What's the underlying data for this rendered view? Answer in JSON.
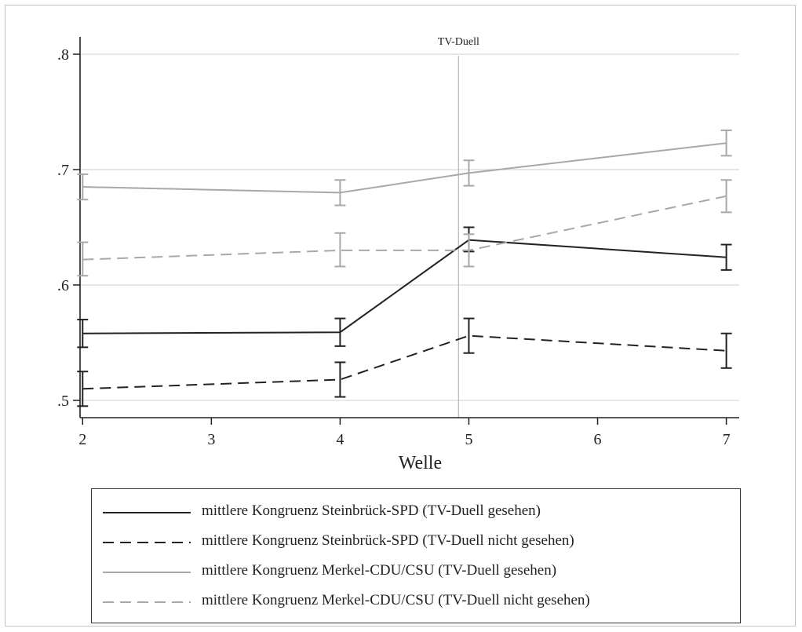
{
  "chart_data": {
    "type": "line",
    "title": "",
    "xlabel": "Welle",
    "ylabel": "",
    "x": [
      2,
      4,
      5,
      7
    ],
    "x_ticks": [
      "2",
      "3",
      "4",
      "5",
      "6",
      "7"
    ],
    "y_ticks": [
      ".5",
      ".6",
      ".7",
      ".8"
    ],
    "xlim": [
      1.98,
      7.1
    ],
    "ylim": [
      0.485,
      0.815
    ],
    "grid": true,
    "annotation": {
      "label": "TV-Duell",
      "x": 4.92
    },
    "legend_position": "bottom",
    "series": [
      {
        "name": "mittlere Kongruenz Steinbrück-SPD (TV-Duell gesehen)",
        "color": "#222222",
        "dash": "solid",
        "values": [
          0.558,
          0.559,
          0.639,
          0.624
        ],
        "lower": [
          0.546,
          0.547,
          0.629,
          0.613
        ],
        "upper": [
          0.57,
          0.571,
          0.65,
          0.635
        ]
      },
      {
        "name": "mittlere Kongruenz Steinbrück-SPD (TV-Duell nicht gesehen)",
        "color": "#222222",
        "dash": "dashed",
        "values": [
          0.51,
          0.518,
          0.556,
          0.543
        ],
        "lower": [
          0.495,
          0.503,
          0.541,
          0.528
        ],
        "upper": [
          0.525,
          0.533,
          0.571,
          0.558
        ]
      },
      {
        "name": "mittlere Kongruenz Merkel-CDU/CSU (TV-Duell gesehen)",
        "color": "#a8a8a8",
        "dash": "solid",
        "values": [
          0.685,
          0.68,
          0.697,
          0.723
        ],
        "lower": [
          0.674,
          0.669,
          0.686,
          0.712
        ],
        "upper": [
          0.696,
          0.691,
          0.708,
          0.734
        ]
      },
      {
        "name": "mittlere Kongruenz Merkel-CDU/CSU (TV-Duell nicht gesehen)",
        "color": "#a8a8a8",
        "dash": "dashed",
        "values": [
          0.622,
          0.63,
          0.63,
          0.677
        ],
        "lower": [
          0.608,
          0.616,
          0.616,
          0.663
        ],
        "upper": [
          0.637,
          0.645,
          0.644,
          0.691
        ]
      }
    ]
  }
}
